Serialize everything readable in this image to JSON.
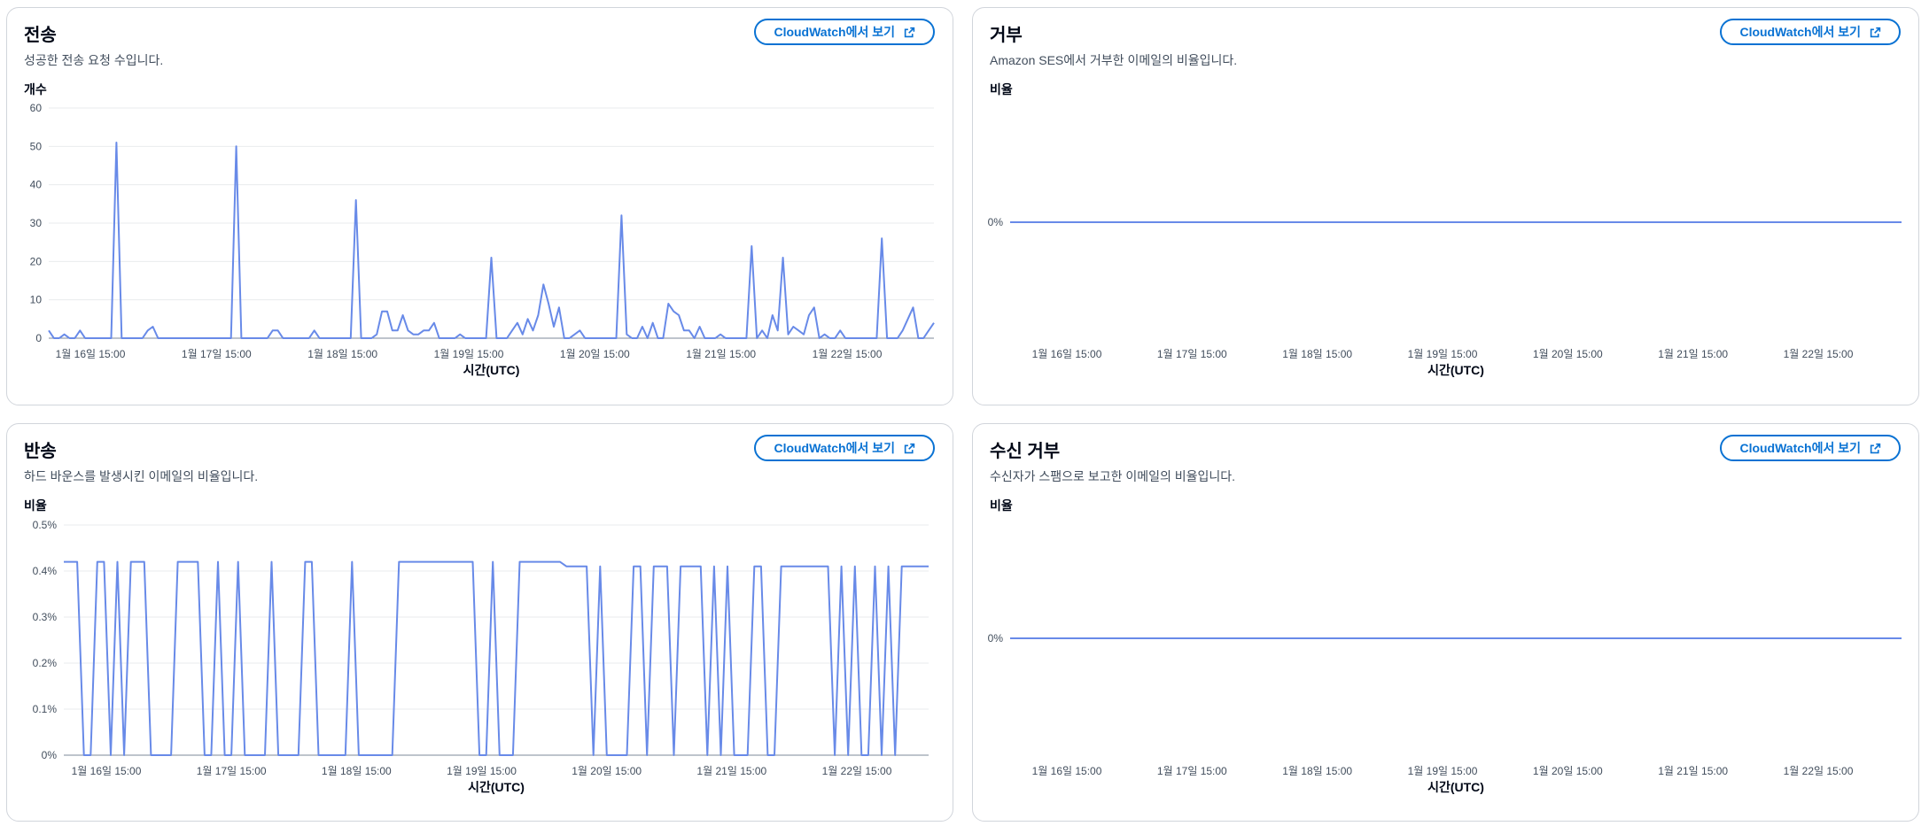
{
  "button_label": "CloudWatch에서 보기",
  "chart_data": [
    {
      "type": "line",
      "title": "전송",
      "subtitle": "성공한 전송 요청 수입니다.",
      "ylabel": "개수",
      "xlabel": "시간(UTC)",
      "x_tick_labels": [
        "1월 16일 15:00",
        "1월 17일 15:00",
        "1월 18일 15:00",
        "1월 19일 15:00",
        "1월 20일 15:00",
        "1월 21일 15:00",
        "1월 22일 15:00"
      ],
      "y_tick_labels": [
        "0",
        "10",
        "20",
        "30",
        "40",
        "50",
        "60"
      ],
      "ylim": [
        0,
        60
      ],
      "grid": true,
      "series": [
        {
          "values": [
            2,
            0,
            0,
            1,
            0,
            0,
            2,
            0,
            0,
            0,
            0,
            0,
            0,
            51,
            0,
            0,
            0,
            0,
            0,
            2,
            3,
            0,
            0,
            0,
            0,
            0,
            0,
            0,
            0,
            0,
            0,
            0,
            0,
            0,
            0,
            0,
            50,
            0,
            0,
            0,
            0,
            0,
            0,
            2,
            2,
            0,
            0,
            0,
            0,
            0,
            0,
            2,
            0,
            0,
            0,
            0,
            0,
            0,
            0,
            36,
            0,
            0,
            0,
            1,
            7,
            7,
            2,
            2,
            6,
            2,
            1,
            1,
            2,
            2,
            4,
            0,
            0,
            0,
            0,
            1,
            0,
            0,
            0,
            0,
            0,
            21,
            0,
            0,
            0,
            2,
            4,
            1,
            5,
            2,
            6,
            14,
            9,
            3,
            8,
            0,
            0,
            1,
            2,
            0,
            0,
            0,
            0,
            0,
            0,
            0,
            32,
            1,
            0,
            0,
            3,
            0,
            4,
            0,
            0,
            9,
            7,
            6,
            2,
            2,
            0,
            3,
            0,
            0,
            0,
            1,
            0,
            0,
            0,
            0,
            0,
            24,
            0,
            2,
            0,
            6,
            2,
            21,
            1,
            3,
            2,
            1,
            6,
            8,
            0,
            1,
            0,
            0,
            2,
            0,
            0,
            0,
            0,
            0,
            0,
            0,
            26,
            0,
            0,
            0,
            2,
            5,
            8,
            0,
            0,
            2,
            4
          ]
        }
      ]
    },
    {
      "type": "line",
      "title": "거부",
      "subtitle": "Amazon SES에서 거부한 이메일의 비율입니다.",
      "ylabel": "비율",
      "xlabel": "시간(UTC)",
      "x_tick_labels": [
        "1월 16일 15:00",
        "1월 17일 15:00",
        "1월 18일 15:00",
        "1월 19일 15:00",
        "1월 20일 15:00",
        "1월 21일 15:00",
        "1월 22일 15:00"
      ],
      "y_tick_labels": [
        "0%"
      ],
      "ylim": [
        0,
        1
      ],
      "grid": false,
      "series": [
        {
          "values": [
            0,
            0
          ]
        }
      ]
    },
    {
      "type": "line",
      "title": "반송",
      "subtitle": "하드 바운스를 발생시킨 이메일의 비율입니다.",
      "ylabel": "비율",
      "xlabel": "시간(UTC)",
      "x_tick_labels": [
        "1월 16일 15:00",
        "1월 17일 15:00",
        "1월 18일 15:00",
        "1월 19일 15:00",
        "1월 20일 15:00",
        "1월 21일 15:00",
        "1월 22일 15:00"
      ],
      "y_tick_labels": [
        "0%",
        "0.1%",
        "0.2%",
        "0.3%",
        "0.4%",
        "0.5%"
      ],
      "ylim": [
        0,
        0.5
      ],
      "grid": true,
      "series": [
        {
          "values": [
            0.42,
            0.42,
            0.42,
            0,
            0,
            0.42,
            0.42,
            0,
            0.42,
            0,
            0.42,
            0.42,
            0.42,
            0,
            0,
            0,
            0,
            0.42,
            0.42,
            0.42,
            0.42,
            0,
            0,
            0.42,
            0,
            0,
            0.42,
            0,
            0,
            0,
            0,
            0.42,
            0,
            0,
            0,
            0,
            0.42,
            0.42,
            0,
            0,
            0,
            0,
            0,
            0.42,
            0,
            0,
            0,
            0,
            0,
            0,
            0.42,
            0.42,
            0.42,
            0.42,
            0.42,
            0.42,
            0.42,
            0.42,
            0.42,
            0.42,
            0.42,
            0.42,
            0,
            0,
            0.42,
            0,
            0,
            0,
            0.42,
            0.42,
            0.42,
            0.42,
            0.42,
            0.42,
            0.42,
            0.41,
            0.41,
            0.41,
            0.41,
            0,
            0.41,
            0,
            0,
            0,
            0,
            0.41,
            0.41,
            0,
            0.41,
            0.41,
            0.41,
            0,
            0.41,
            0.41,
            0.41,
            0.41,
            0,
            0.41,
            0,
            0.41,
            0,
            0,
            0,
            0.41,
            0.41,
            0,
            0,
            0.41,
            0.41,
            0.41,
            0.41,
            0.41,
            0.41,
            0.41,
            0.41,
            0,
            0.41,
            0,
            0.41,
            0,
            0,
            0.41,
            0,
            0.41,
            0,
            0.41,
            0.41,
            0.41,
            0.41,
            0.41
          ]
        }
      ]
    },
    {
      "type": "line",
      "title": "수신 거부",
      "subtitle": "수신자가 스팸으로 보고한 이메일의 비율입니다.",
      "ylabel": "비율",
      "xlabel": "시간(UTC)",
      "x_tick_labels": [
        "1월 16일 15:00",
        "1월 17일 15:00",
        "1월 18일 15:00",
        "1월 19일 15:00",
        "1월 20일 15:00",
        "1월 21일 15:00",
        "1월 22일 15:00"
      ],
      "y_tick_labels": [
        "0%"
      ],
      "ylim": [
        0,
        1
      ],
      "grid": false,
      "series": [
        {
          "values": [
            0,
            0
          ]
        }
      ]
    }
  ]
}
